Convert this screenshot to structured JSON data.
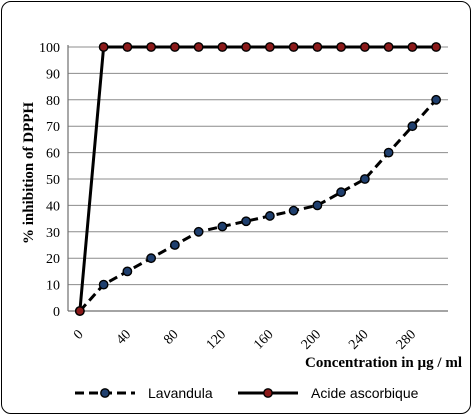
{
  "chart_data": {
    "type": "line",
    "xlabel": "Concentration in µg / ml",
    "ylabel": "% inhibition of DPPH",
    "ylim": [
      0,
      100
    ],
    "yticks": [
      0,
      10,
      20,
      30,
      40,
      50,
      60,
      70,
      80,
      90,
      100
    ],
    "xlim": [
      -10,
      310
    ],
    "xticks": [
      0,
      40,
      80,
      120,
      160,
      200,
      240,
      280
    ],
    "grid": "horizontal",
    "legend_position": "bottom",
    "series": [
      {
        "name": "Lavandula",
        "style": "dashed",
        "line_color": "#000000",
        "marker_color": "#1f3f6e",
        "x": [
          0,
          20,
          40,
          60,
          80,
          100,
          120,
          140,
          160,
          180,
          200,
          220,
          240,
          260,
          280,
          300
        ],
        "y": [
          0,
          10,
          15,
          20,
          25,
          30,
          32,
          34,
          36,
          38,
          40,
          45,
          50,
          60,
          70,
          80
        ]
      },
      {
        "name": "Acide ascorbique",
        "style": "solid",
        "line_color": "#000000",
        "marker_color": "#8b1a1a",
        "x": [
          0,
          20,
          40,
          60,
          80,
          100,
          120,
          140,
          160,
          180,
          200,
          220,
          240,
          260,
          280,
          300
        ],
        "y": [
          0,
          100,
          100,
          100,
          100,
          100,
          100,
          100,
          100,
          100,
          100,
          100,
          100,
          100,
          100,
          100
        ]
      }
    ]
  }
}
